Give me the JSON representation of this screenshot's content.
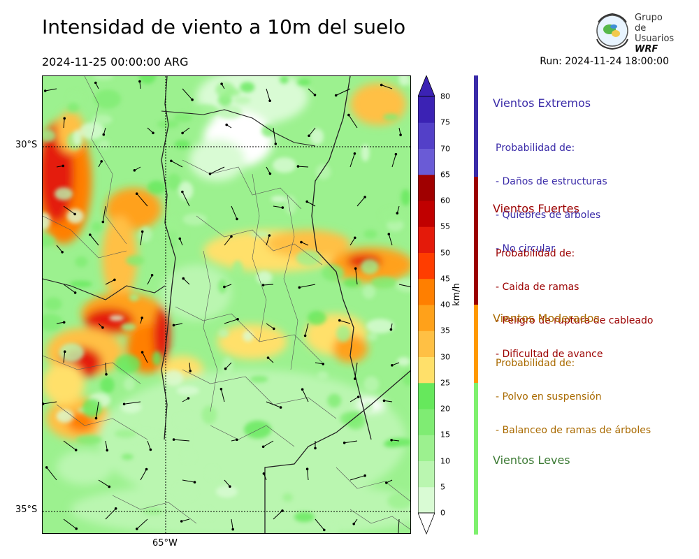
{
  "title": "Intensidad de viento a 10m del suelo",
  "valid_time": "2024-11-25 00:00:00 ARG",
  "run_time": "Run: 2024-11-24 18:00:00",
  "logo": {
    "line1": "Grupo de",
    "line2": "Usuarios",
    "line3": "WRF"
  },
  "map": {
    "lat_labels": [
      "30°S",
      "35°S"
    ],
    "lon_labels": [
      "65°W"
    ]
  },
  "colorbar": {
    "unit": "km/h",
    "ticks": [
      "0",
      "5",
      "10",
      "15",
      "20",
      "25",
      "30",
      "35",
      "40",
      "45",
      "50",
      "55",
      "60",
      "65",
      "70",
      "75",
      "80"
    ],
    "colors": [
      "#ffffff",
      "#d9fbd4",
      "#baf6b0",
      "#9cf18f",
      "#7fec73",
      "#66e85c",
      "#ffe06a",
      "#ffc044",
      "#ffa11a",
      "#ff7f00",
      "#ff3d00",
      "#e41a0a",
      "#c00000",
      "#a00000",
      "#6a5bd6",
      "#5340c8",
      "#3b22b4"
    ]
  },
  "categories": [
    {
      "name": "Vientos Extremos",
      "color": "#3a2ba8",
      "lines": [
        "Probabilidad de:",
        "- Daños de estructuras",
        "- Quiebres de árboles",
        "- No circular"
      ]
    },
    {
      "name": "Vientos Fuertes",
      "color": "#9b0000",
      "lines": [
        "Probabilidad de:",
        "- Caida de ramas",
        "- Peligro de ruptura de cableado",
        "- Dificultad de avance"
      ]
    },
    {
      "name": "Vientos Moderados",
      "color": "#a96a00",
      "lines": [
        "Probabilidad de:",
        "- Polvo en suspensión",
        "- Balanceo de ramas de árboles"
      ]
    },
    {
      "name": "Vientos Leves",
      "color": "#3c7a34",
      "lines": []
    }
  ],
  "side_bar_colors": {
    "extreme": "#3a2ba8",
    "strong": "#9b0000",
    "moderate": "#ff9900",
    "light": "#7ef06e"
  }
}
